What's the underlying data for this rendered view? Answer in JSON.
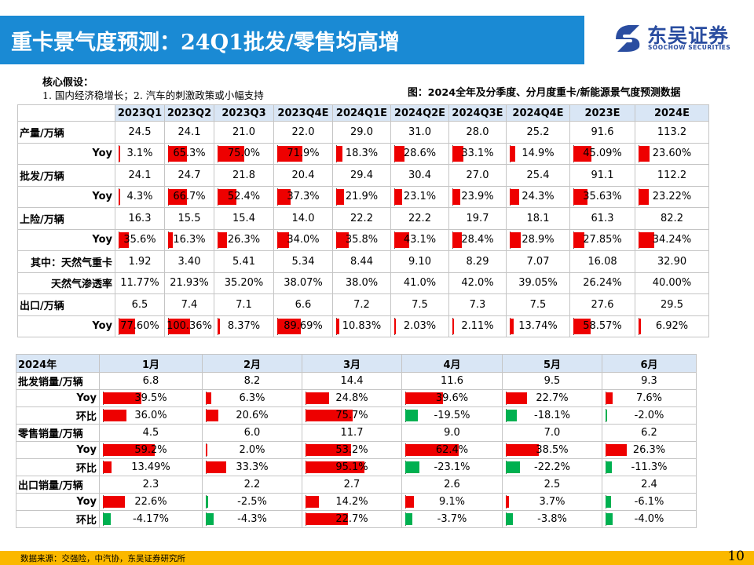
{
  "title": "重卡景气度预测：24Q1批发/零售均高增",
  "logo": {
    "cn": "东吴证券",
    "en": "SOOCHOW SECURITIES"
  },
  "assumptions": {
    "heading": "核心假设：",
    "text": "1. 国内经济稳增长；2. 汽车的刺激政策或小幅支持"
  },
  "figure_caption": "图：2024全年及分季度、分月度重卡/新能源景气度预测数据",
  "forecast_table": {
    "columns": [
      "2023Q1",
      "2023Q2",
      "2023Q3",
      "2023Q4E",
      "2024Q1E",
      "2024Q2E",
      "2024Q3E",
      "2024Q4E",
      "2023E",
      "2024E"
    ],
    "rows": [
      {
        "label": "产量/万辆",
        "align": "left",
        "values": [
          "24.5",
          "24.1",
          "21.0",
          "22.0",
          "29.0",
          "31.0",
          "28.0",
          "25.2",
          "91.6",
          "113.2"
        ]
      },
      {
        "label": "Yoy",
        "align": "right",
        "values": [
          "3.1%",
          "65.3%",
          "75.0%",
          "71.9%",
          "18.3%",
          "28.6%",
          "33.1%",
          "14.9%",
          "45.09%",
          "23.60%"
        ],
        "bars": [
          3.1,
          65.3,
          75.0,
          71.9,
          18.3,
          28.6,
          33.1,
          14.9,
          45.09,
          23.6
        ],
        "scale": 150
      },
      {
        "label": "批发/万辆",
        "align": "left",
        "values": [
          "24.1",
          "24.7",
          "21.8",
          "20.4",
          "29.4",
          "30.4",
          "27.0",
          "25.4",
          "91.1",
          "112.2"
        ]
      },
      {
        "label": "Yoy",
        "align": "right",
        "values": [
          "4.3%",
          "66.7%",
          "52.4%",
          "37.3%",
          "21.9%",
          "23.1%",
          "23.9%",
          "24.3%",
          "35.63%",
          "23.22%"
        ],
        "bars": [
          4.3,
          66.7,
          52.4,
          37.3,
          21.9,
          23.1,
          23.9,
          24.3,
          35.63,
          23.22
        ],
        "scale": 150
      },
      {
        "label": "上险/万辆",
        "align": "left",
        "values": [
          "16.3",
          "15.5",
          "15.4",
          "14.0",
          "22.2",
          "22.2",
          "19.7",
          "18.1",
          "61.3",
          "82.2"
        ]
      },
      {
        "label": "Yoy",
        "align": "right",
        "values": [
          "35.6%",
          "16.3%",
          "26.3%",
          "34.0%",
          "35.8%",
          "43.1%",
          "28.4%",
          "28.9%",
          "27.85%",
          "34.24%"
        ],
        "bars": [
          35.6,
          16.3,
          26.3,
          34.0,
          35.8,
          43.1,
          28.4,
          28.9,
          27.85,
          34.24
        ],
        "scale": 150
      },
      {
        "label": "其中：天然气重卡",
        "align": "right",
        "values": [
          "1.92",
          "3.40",
          "5.41",
          "5.34",
          "8.44",
          "9.10",
          "8.29",
          "7.07",
          "16.08",
          "32.90"
        ]
      },
      {
        "label": "天然气渗透率",
        "align": "right",
        "values": [
          "11.77%",
          "21.93%",
          "35.20%",
          "38.07%",
          "38.0%",
          "41.0%",
          "42.0%",
          "39.05%",
          "26.24%",
          "40.00%"
        ]
      },
      {
        "label": "出口/万辆",
        "align": "left",
        "values": [
          "6.5",
          "7.4",
          "7.1",
          "6.6",
          "7.2",
          "7.5",
          "7.3",
          "7.5",
          "27.6",
          "29.5"
        ]
      },
      {
        "label": "Yoy",
        "align": "right",
        "values": [
          "77.60%",
          "100.36%",
          "8.37%",
          "89.69%",
          "10.83%",
          "2.03%",
          "2.11%",
          "13.74%",
          "58.57%",
          "6.92%"
        ],
        "bars": [
          77.6,
          100.36,
          8.37,
          89.69,
          10.83,
          2.03,
          2.11,
          13.74,
          58.57,
          6.92
        ],
        "scale": 200
      }
    ]
  },
  "monthly_table": {
    "corner": "2024年",
    "columns": [
      "1月",
      "2月",
      "3月",
      "4月",
      "5月",
      "6月"
    ],
    "rows": [
      {
        "label": "批发销量/万辆",
        "align": "left",
        "values": [
          "6.8",
          "8.2",
          "14.4",
          "11.6",
          "9.5",
          "9.3"
        ]
      },
      {
        "label": "Yoy",
        "align": "right",
        "values": [
          "39.5%",
          "6.3%",
          "24.8%",
          "39.6%",
          "22.7%",
          "7.6%"
        ],
        "bars": [
          39.5,
          6.3,
          24.8,
          39.6,
          22.7,
          7.6
        ],
        "scale": 100
      },
      {
        "label": "环比",
        "align": "right",
        "values": [
          "36.0%",
          "20.6%",
          "75.7%",
          "-19.5%",
          "-18.1%",
          "-2.0%"
        ],
        "bars": [
          36.0,
          20.6,
          75.7,
          -19.5,
          -18.1,
          -2.0
        ],
        "scale": 150
      },
      {
        "label": "零售销量/万辆",
        "align": "left",
        "values": [
          "4.5",
          "6.0",
          "11.7",
          "9.0",
          "7.0",
          "6.2"
        ]
      },
      {
        "label": "Yoy",
        "align": "right",
        "values": [
          "59.2%",
          "2.0%",
          "53.2%",
          "62.4%",
          "38.5%",
          "26.3%"
        ],
        "bars": [
          59.2,
          2.0,
          53.2,
          62.4,
          38.5,
          26.3
        ],
        "scale": 110
      },
      {
        "label": "环比",
        "align": "right",
        "values": [
          "13.49%",
          "33.3%",
          "95.1%",
          "-23.1%",
          "-22.2%",
          "-11.3%"
        ],
        "bars": [
          13.49,
          33.3,
          95.1,
          -23.1,
          -22.2,
          -11.3
        ],
        "scale": 150
      },
      {
        "label": "出口销量/万辆",
        "align": "left",
        "values": [
          "2.3",
          "2.2",
          "2.7",
          "2.6",
          "2.5",
          "2.4"
        ]
      },
      {
        "label": "Yoy",
        "align": "right",
        "values": [
          "22.6%",
          "-2.5%",
          "14.2%",
          "9.1%",
          "3.7%",
          "-6.1%"
        ],
        "bars": [
          22.6,
          -2.5,
          14.2,
          9.1,
          3.7,
          -6.1
        ],
        "scale": 100
      },
      {
        "label": "环比",
        "align": "right",
        "values": [
          "-4.17%",
          "-4.3%",
          "22.7%",
          "-3.7%",
          "-3.8%",
          "-4.0%"
        ],
        "bars": [
          -4.17,
          -4.3,
          22.7,
          -3.7,
          -3.8,
          -4.0
        ],
        "scale": 50
      }
    ]
  },
  "footer": {
    "source": "数据来源：交强险，中汽协，东吴证券研究所",
    "page": "10"
  },
  "colors": {
    "title_bg": "#1a8ad4",
    "header_blue": "#d9e6f5",
    "header_yellow": "#fde9b1",
    "bar_pos": "#ee0000",
    "bar_neg": "#00b050",
    "footer_bg": "#fbb800",
    "logo": "#2a4da0"
  }
}
